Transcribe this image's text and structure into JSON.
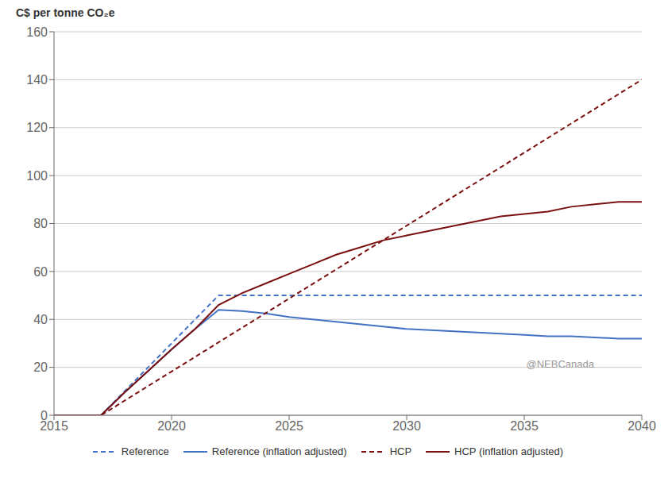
{
  "chart_data": {
    "type": "line",
    "ylabel": "C$ per tonne CO₂e",
    "annotations": [
      "@NEBCanada"
    ],
    "xlim": [
      2015,
      2040
    ],
    "xticks": [
      2015,
      2020,
      2025,
      2030,
      2035,
      2040
    ],
    "ylim": [
      0,
      160
    ],
    "yticks": [
      0,
      20,
      40,
      60,
      80,
      100,
      120,
      140,
      160
    ],
    "grid": "y",
    "legend": "bottom",
    "series": [
      {
        "name": "Reference",
        "color": "#4472c4",
        "line_style": "dashed",
        "x": [
          2015,
          2017,
          2018,
          2019,
          2020,
          2021,
          2022,
          2023,
          2024,
          2025,
          2026,
          2027,
          2028,
          2029,
          2030,
          2031,
          2032,
          2033,
          2034,
          2035,
          2036,
          2037,
          2038,
          2039,
          2040
        ],
        "values": [
          0,
          0,
          10,
          20,
          30,
          40,
          50,
          50,
          50,
          50,
          50,
          50,
          50,
          50,
          50,
          50,
          50,
          50,
          50,
          50,
          50,
          50,
          50,
          50,
          50
        ]
      },
      {
        "name": "Reference (inflation adjusted)",
        "color": "#4472c4",
        "line_style": "solid",
        "x": [
          2015,
          2017,
          2018,
          2019,
          2020,
          2021,
          2022,
          2023,
          2024,
          2025,
          2026,
          2027,
          2028,
          2029,
          2030,
          2031,
          2032,
          2033,
          2034,
          2035,
          2036,
          2037,
          2038,
          2039,
          2040
        ],
        "values": [
          0,
          0,
          9.5,
          18.5,
          27.5,
          36,
          44,
          43.5,
          42.5,
          41,
          40,
          39,
          38,
          37,
          36,
          35.5,
          35,
          34.5,
          34,
          33.5,
          33,
          33,
          32.5,
          32,
          32
        ]
      },
      {
        "name": "HCP",
        "color": "#7B1010",
        "line_style": "dashed",
        "x": [
          2015,
          2017,
          2040
        ],
        "values": [
          0,
          0,
          140
        ]
      },
      {
        "name": "HCP (inflation adjusted)",
        "color": "#7B1010",
        "line_style": "solid",
        "x": [
          2015,
          2017,
          2018,
          2019,
          2020,
          2021,
          2022,
          2023,
          2024,
          2025,
          2026,
          2027,
          2028,
          2029,
          2030,
          2031,
          2032,
          2033,
          2034,
          2035,
          2036,
          2037,
          2038,
          2039,
          2040
        ],
        "values": [
          0,
          0,
          9.5,
          18.5,
          27.5,
          36,
          46,
          51,
          55,
          59,
          63,
          67,
          70,
          73,
          75,
          77,
          79,
          81,
          83,
          84,
          85,
          87,
          88,
          89,
          89
        ]
      }
    ]
  }
}
